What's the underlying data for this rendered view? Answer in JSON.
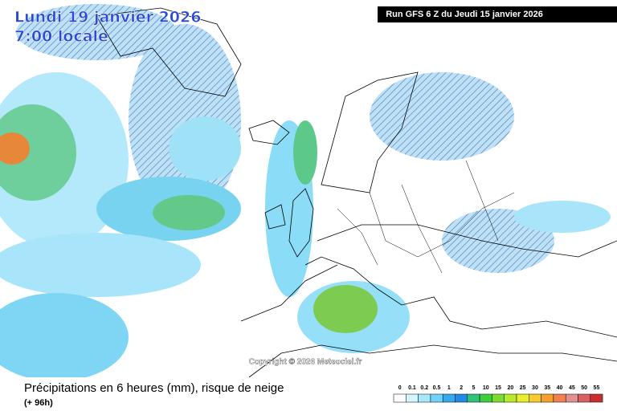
{
  "header": {
    "date": "Lundi 19 janvier 2026",
    "time": "7:00 locale",
    "run": "Run GFS 6 Z du Jeudi 15 janvier 2026"
  },
  "footer": {
    "copyright": "Copyright © 2026 Meteociel.fr",
    "title": "Précipitations en 6 heures (mm), risque de neige",
    "lead": "(+ 96h)"
  },
  "legend": {
    "items": [
      {
        "label": 0,
        "color": "#ffffff"
      },
      {
        "label": 0.1,
        "color": "#d2f5ff"
      },
      {
        "label": 0.2,
        "color": "#a5e8fc"
      },
      {
        "label": 0.5,
        "color": "#6fd2f7"
      },
      {
        "label": 1,
        "color": "#35a8f0"
      },
      {
        "label": 2,
        "color": "#1e8ce6"
      },
      {
        "label": 5,
        "color": "#2ec27a"
      },
      {
        "label": 10,
        "color": "#3ccf3c"
      },
      {
        "label": 15,
        "color": "#7cdc2e"
      },
      {
        "label": 20,
        "color": "#b8ea2c"
      },
      {
        "label": 25,
        "color": "#e8ee2c"
      },
      {
        "label": 30,
        "color": "#f5cc2c"
      },
      {
        "label": 35,
        "color": "#f5a02c"
      },
      {
        "label": 40,
        "color": "#f08050"
      },
      {
        "label": 45,
        "color": "#e09090"
      },
      {
        "label": 50,
        "color": "#d86060"
      },
      {
        "label": 55,
        "color": "#c83030"
      }
    ]
  }
}
